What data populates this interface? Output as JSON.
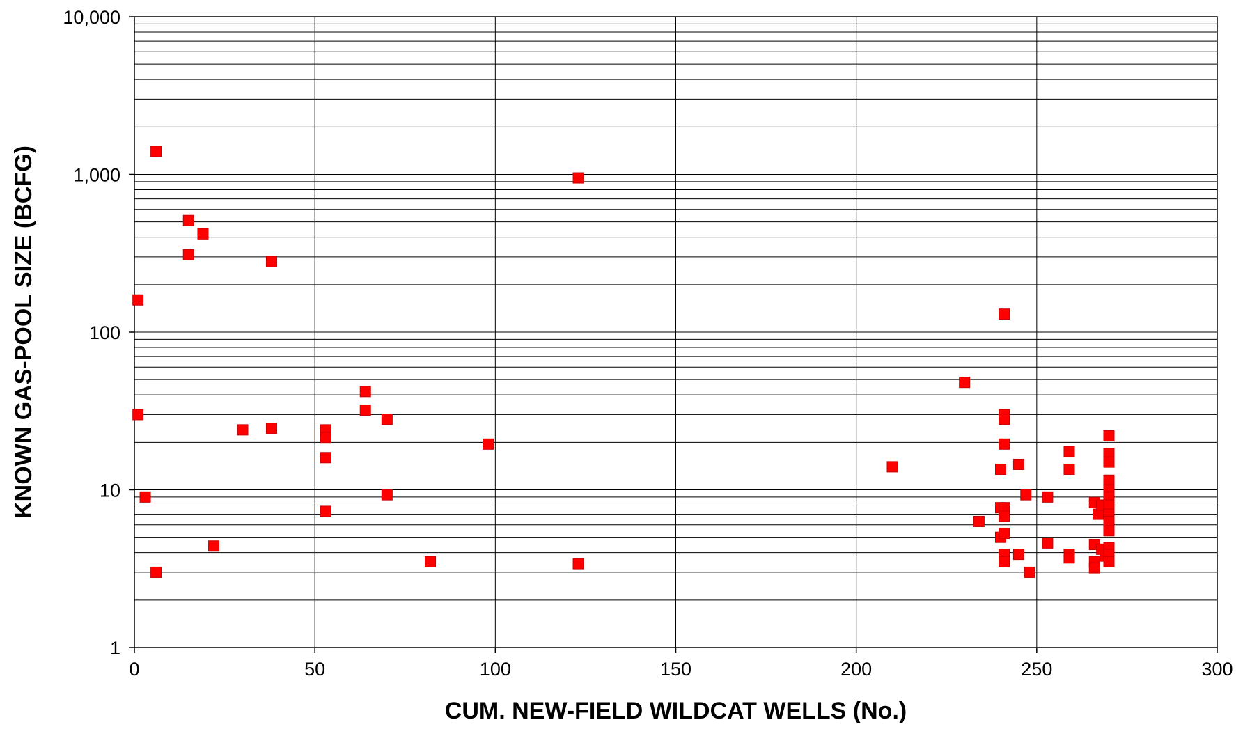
{
  "chart_data": {
    "type": "scatter",
    "title": "",
    "xlabel": "CUM. NEW-FIELD WILDCAT WELLS (No.)",
    "ylabel": "KNOWN GAS-POOL SIZE (BCFG)",
    "xlim": [
      0,
      300
    ],
    "ylim": [
      1,
      10000
    ],
    "y_scale": "log",
    "grid": true,
    "legend": "none",
    "x_ticks": [
      0,
      50,
      100,
      150,
      200,
      250,
      300
    ],
    "x_tick_labels": [
      "0",
      "50",
      "100",
      "150",
      "200",
      "250",
      "300"
    ],
    "y_ticks": [
      1,
      10,
      100,
      1000,
      10000
    ],
    "y_tick_labels": [
      "1",
      "10",
      "100",
      "1,000",
      "10,000"
    ],
    "marker_color": "#ff0000",
    "series": [
      {
        "points": [
          [
            1,
            160
          ],
          [
            1,
            30
          ],
          [
            3,
            9
          ],
          [
            6,
            1400
          ],
          [
            6,
            3
          ],
          [
            15,
            510
          ],
          [
            15,
            310
          ],
          [
            19,
            420
          ],
          [
            22,
            4.4
          ],
          [
            30,
            24
          ],
          [
            38,
            280
          ],
          [
            38,
            24.5
          ],
          [
            53,
            24
          ],
          [
            53,
            21.5
          ],
          [
            53,
            16
          ],
          [
            53,
            7.3
          ],
          [
            64,
            42
          ],
          [
            64,
            32
          ],
          [
            70,
            28
          ],
          [
            70,
            9.3
          ],
          [
            82,
            3.5
          ],
          [
            98,
            19.5
          ],
          [
            123,
            950
          ],
          [
            123,
            3.4
          ],
          [
            210,
            14
          ],
          [
            230,
            48
          ],
          [
            234,
            6.3
          ],
          [
            240,
            13.5
          ],
          [
            240,
            7.7
          ],
          [
            240,
            5
          ],
          [
            241,
            130
          ],
          [
            241,
            30
          ],
          [
            241,
            28
          ],
          [
            241,
            19.5
          ],
          [
            241,
            7.7
          ],
          [
            241,
            6.8
          ],
          [
            241,
            5.3
          ],
          [
            241,
            3.9
          ],
          [
            241,
            3.5
          ],
          [
            245,
            14.5
          ],
          [
            245,
            3.9
          ],
          [
            247,
            9.3
          ],
          [
            248,
            3
          ],
          [
            253,
            9
          ],
          [
            253,
            4.6
          ],
          [
            259,
            17.5
          ],
          [
            259,
            13.5
          ],
          [
            259,
            3.9
          ],
          [
            259,
            3.7
          ],
          [
            266,
            8.3
          ],
          [
            266,
            4.5
          ],
          [
            266,
            3.5
          ],
          [
            266,
            3.2
          ],
          [
            267,
            7
          ],
          [
            268,
            8
          ],
          [
            268,
            4.2
          ],
          [
            269,
            3.8
          ],
          [
            270,
            22
          ],
          [
            270,
            17
          ],
          [
            270,
            15
          ],
          [
            270,
            11.5
          ],
          [
            270,
            10
          ],
          [
            270,
            9
          ],
          [
            270,
            8
          ],
          [
            270,
            7
          ],
          [
            270,
            6.3
          ],
          [
            270,
            5.5
          ],
          [
            270,
            4.3
          ],
          [
            270,
            3.9
          ],
          [
            270,
            3.5
          ]
        ]
      }
    ]
  }
}
